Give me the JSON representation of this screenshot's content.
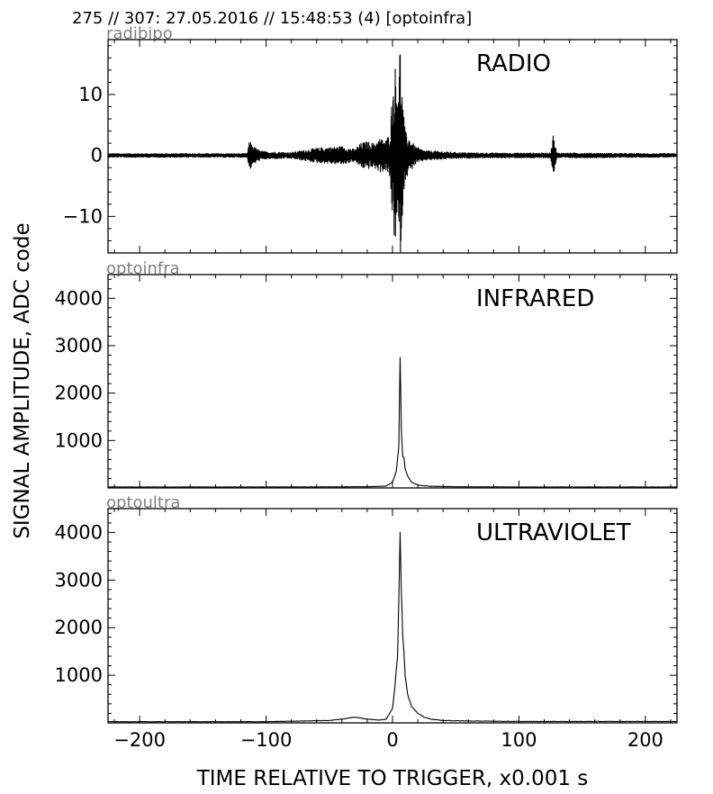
{
  "header": "275 // 307:   27.05.2016 // 15:48:53 (4)  [optoinfra]",
  "chart_data": {
    "type": "line",
    "xlabel": "TIME RELATIVE TO TRIGGER,   x0.001 s",
    "ylabel": "SIGNAL AMPLITUDE,  ADC code",
    "xlim": [
      -225,
      225
    ],
    "xticks": [
      -200,
      -100,
      0,
      100,
      200
    ],
    "xtick_labels": [
      "−200",
      "−100",
      "0",
      "100",
      "200"
    ],
    "panels": [
      {
        "name": "radibipo",
        "title": "RADIO",
        "ylim": [
          -16,
          19
        ],
        "yticks": [
          -10,
          0,
          10
        ],
        "ytick_labels": [
          "−10",
          "0",
          "10"
        ],
        "series": [
          {
            "kind": "oscillation",
            "x": [
              -225,
              -115,
              -113,
              -110,
              -105,
              -100,
              -80,
              -60,
              -40,
              -30,
              -25,
              -20,
              -15,
              -10,
              -5,
              -2,
              0,
              2,
              4,
              6,
              8,
              10,
              13,
              18,
              25,
              35,
              50,
              70,
              100,
              125,
              127,
              130,
              150,
              200,
              225
            ],
            "amp": [
              0.3,
              0.3,
              2.5,
              1.5,
              0.8,
              0.6,
              0.5,
              1.2,
              1.5,
              1.0,
              2.0,
              2.3,
              2.0,
              2.8,
              2.5,
              4.0,
              11.0,
              15.0,
              12.0,
              19.0,
              9.0,
              4.0,
              3.0,
              1.5,
              0.8,
              0.7,
              0.5,
              0.4,
              0.4,
              0.4,
              3.5,
              0.4,
              0.4,
              0.3,
              0.3
            ]
          }
        ]
      },
      {
        "name": "optoinfra",
        "title": "INFRARED",
        "ylim": [
          0,
          4500
        ],
        "yticks": [
          1000,
          2000,
          3000,
          4000
        ],
        "ytick_labels": [
          "1000",
          "2000",
          "3000",
          "4000"
        ],
        "series": [
          {
            "kind": "pulse",
            "x": [
              -225,
              -100,
              -20,
              -5,
              0,
              3,
              5,
              6,
              7,
              8,
              9,
              10,
              12,
              15,
              20,
              30,
              50,
              100,
              225
            ],
            "y": [
              20,
              20,
              25,
              40,
              120,
              350,
              900,
              2750,
              1200,
              680,
              650,
              400,
              250,
              120,
              60,
              35,
              25,
              20,
              20
            ]
          }
        ]
      },
      {
        "name": "optoultra",
        "title": "ULTRAVIOLET",
        "ylim": [
          0,
          4500
        ],
        "yticks": [
          1000,
          2000,
          3000,
          4000
        ],
        "ytick_labels": [
          "1000",
          "2000",
          "3000",
          "4000"
        ],
        "series": [
          {
            "kind": "pulse",
            "x": [
              -225,
              -100,
              -50,
              -40,
              -30,
              -20,
              -10,
              -5,
              0,
              2,
              4,
              5,
              6,
              7,
              8,
              9,
              10,
              12,
              15,
              20,
              25,
              30,
              40,
              60,
              100,
              225
            ],
            "y": [
              25,
              25,
              50,
              80,
              120,
              80,
              60,
              80,
              300,
              800,
              1400,
              2600,
              4050,
              2800,
              1900,
              1500,
              1000,
              600,
              350,
              200,
              120,
              80,
              50,
              40,
              30,
              30
            ]
          }
        ]
      }
    ]
  }
}
